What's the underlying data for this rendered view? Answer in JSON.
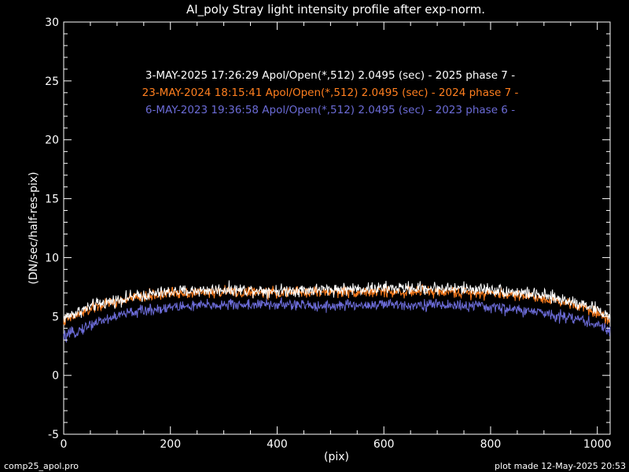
{
  "chart_data": {
    "type": "line",
    "title": "AI_poly Stray light intensity profile after exp-norm.",
    "xlabel": "(pix)",
    "ylabel": "(DN/sec/half-res-pix)",
    "xlim": [
      0,
      1024
    ],
    "ylim": [
      -5,
      30
    ],
    "xticks": [
      0,
      200,
      400,
      600,
      800,
      1000
    ],
    "yticks": [
      -5,
      0,
      5,
      10,
      15,
      20,
      25,
      30
    ],
    "grid": false,
    "legend": "top-center",
    "series": [
      {
        "label": "3-MAY-2025 17:26:29   Apol/Open(*,512)   2.0495 (sec) - 2025 phase 7 -",
        "color": "#ffffff",
        "profile": [
          [
            0,
            4.9
          ],
          [
            60,
            6.0
          ],
          [
            120,
            6.6
          ],
          [
            200,
            7.1
          ],
          [
            300,
            7.3
          ],
          [
            400,
            7.2
          ],
          [
            500,
            7.3
          ],
          [
            600,
            7.4
          ],
          [
            700,
            7.4
          ],
          [
            800,
            7.3
          ],
          [
            880,
            6.9
          ],
          [
            940,
            6.4
          ],
          [
            980,
            6.0
          ],
          [
            1024,
            5.0
          ]
        ],
        "noise_amplitude": 0.5
      },
      {
        "label": "23-MAY-2024 18:15:41   Apol/Open(*,512)   2.0495 (sec) - 2024 phase 7 -",
        "color": "#ff7f1f",
        "profile": [
          [
            0,
            4.6
          ],
          [
            60,
            5.8
          ],
          [
            120,
            6.5
          ],
          [
            200,
            7.0
          ],
          [
            300,
            7.1
          ],
          [
            400,
            7.0
          ],
          [
            500,
            7.1
          ],
          [
            600,
            7.1
          ],
          [
            700,
            7.1
          ],
          [
            800,
            7.0
          ],
          [
            880,
            6.7
          ],
          [
            940,
            6.2
          ],
          [
            980,
            5.8
          ],
          [
            1024,
            4.7
          ]
        ],
        "noise_amplitude": 0.45
      },
      {
        "label": "6-MAY-2023 19:36:58   Apol/Open(*,512)   2.0495 (sec) - 2023 phase 6 -",
        "color": "#6b6bd6",
        "profile": [
          [
            0,
            3.2
          ],
          [
            60,
            4.5
          ],
          [
            120,
            5.3
          ],
          [
            200,
            5.8
          ],
          [
            300,
            6.0
          ],
          [
            400,
            6.0
          ],
          [
            500,
            5.9
          ],
          [
            600,
            6.0
          ],
          [
            700,
            6.0
          ],
          [
            800,
            5.8
          ],
          [
            880,
            5.4
          ],
          [
            940,
            5.0
          ],
          [
            980,
            4.6
          ],
          [
            1024,
            3.8
          ]
        ],
        "noise_amplitude": 0.45
      }
    ]
  },
  "footer": {
    "left": "comp25_apol.pro",
    "right": "plot made 12-May-2025 20:53"
  }
}
